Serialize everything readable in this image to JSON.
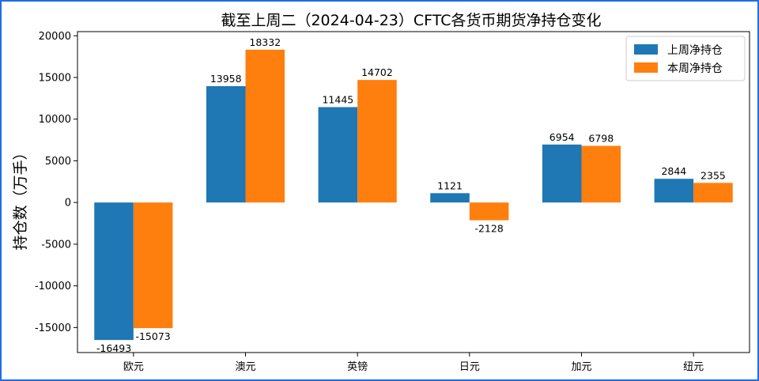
{
  "chart_data": {
    "type": "bar",
    "title": "截至上周二（2024-04-23）CFTC各货币期货净持仓变化",
    "xlabel": "",
    "ylabel": "持仓数（万手）",
    "categories": [
      "欧元",
      "澳元",
      "英镑",
      "日元",
      "加元",
      "纽元"
    ],
    "series": [
      {
        "name": "上周净持仓",
        "color": "#1f77b4",
        "values": [
          -16493,
          13958,
          11445,
          1121,
          6954,
          2844
        ]
      },
      {
        "name": "本周净持仓",
        "color": "#ff7f0e",
        "values": [
          -15073,
          18332,
          14702,
          -2128,
          6798,
          2355
        ]
      }
    ],
    "ylim": [
      -18000,
      20500
    ],
    "yticks": [
      -15000,
      -10000,
      -5000,
      0,
      5000,
      10000,
      15000,
      20000
    ],
    "grid": false,
    "legend": "top-right"
  }
}
